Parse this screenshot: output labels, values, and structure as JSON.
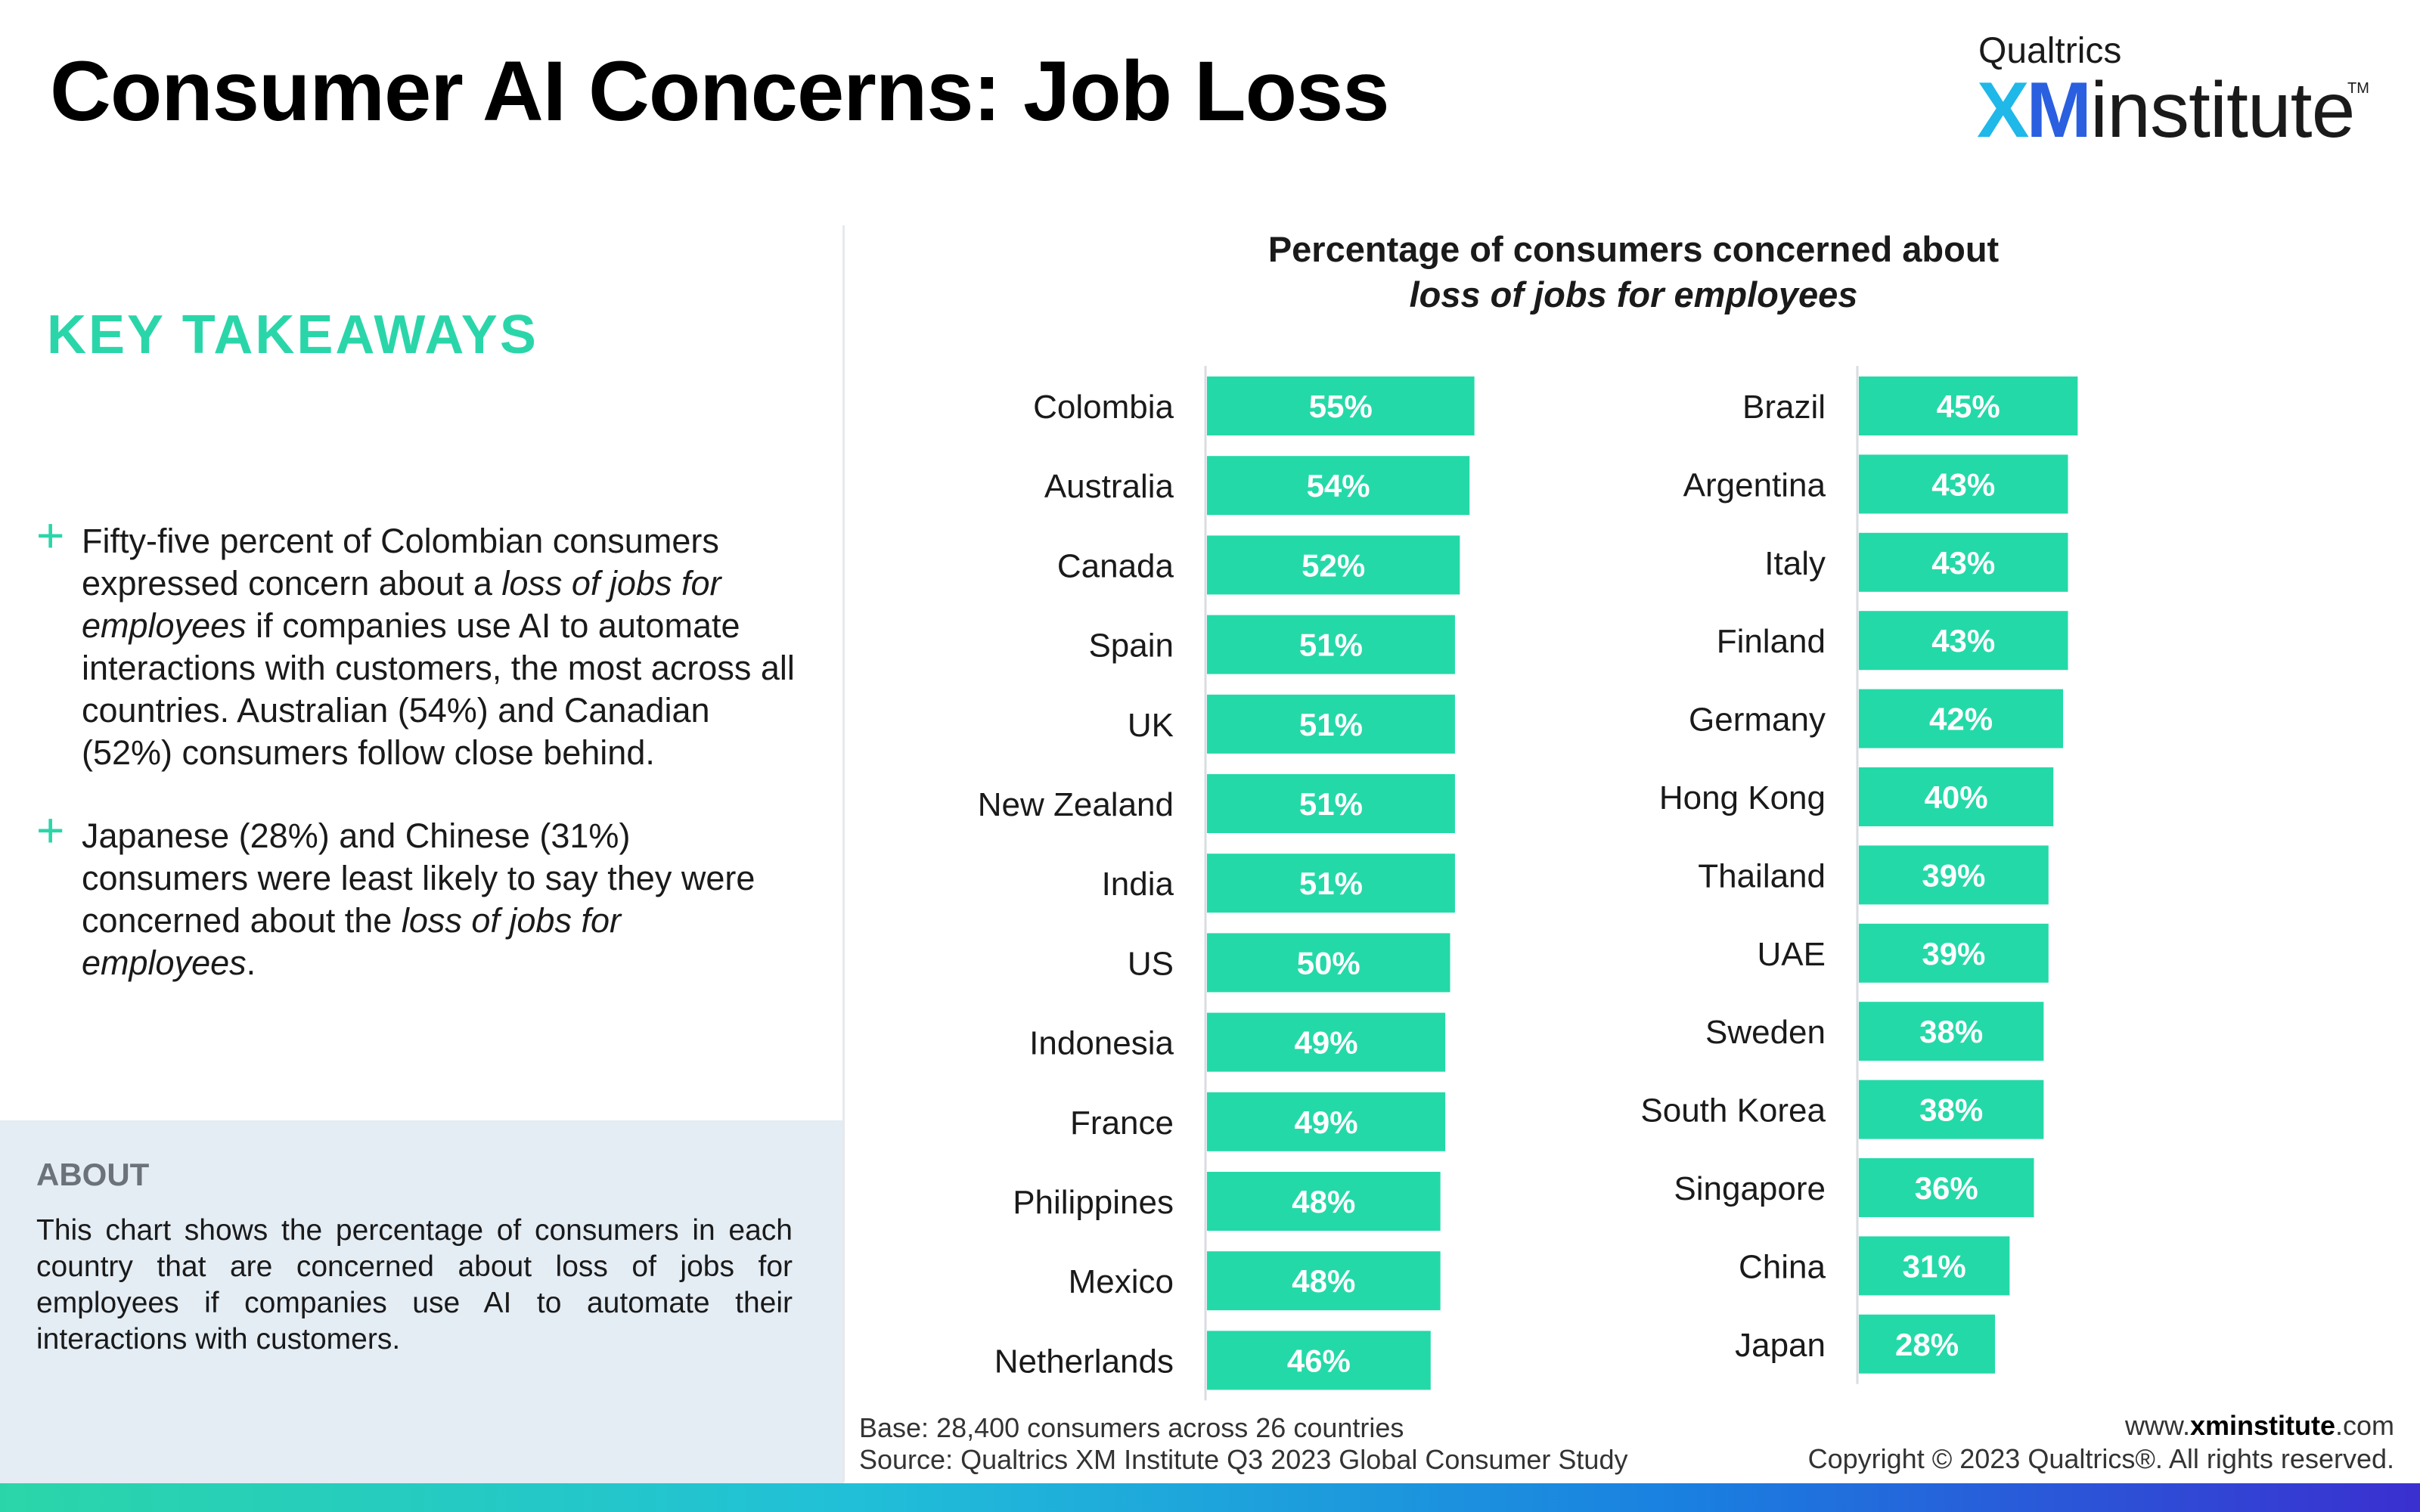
{
  "header": {
    "title": "Consumer AI Concerns: Job Loss",
    "logo_top": "Qualtrics",
    "logo_xm": "XM",
    "logo_institute": "institute",
    "logo_tm": "TM"
  },
  "takeaways": {
    "heading": "KEY TAKEAWAYS",
    "bullets": [
      {
        "p1": "Fifty-five percent of Colombian consumers expressed concern about a ",
        "em": "loss of jobs for employees",
        "p2": " if companies use AI to automate interactions with customers, the most across all countries. Australian (54%) and Canadian (52%) consumers follow close behind."
      },
      {
        "p1": "Japanese (28%) and Chinese (31%) consumers were least likely to say they were concerned about the ",
        "em": "loss of jobs for employees",
        "p2": "."
      }
    ]
  },
  "about": {
    "heading": "ABOUT",
    "text": "This chart shows the percentage of consumers in each country that are concerned about loss of jobs for employees if companies use AI to automate their interactions with customers."
  },
  "chart_data": {
    "type": "bar",
    "orientation": "horizontal",
    "title": "Percentage of consumers concerned about",
    "subtitle": "loss of jobs for employees",
    "value_suffix": "%",
    "bar_color": "#24d9a8",
    "panels": [
      {
        "categories": [
          "Colombia",
          "Australia",
          "Canada",
          "Spain",
          "UK",
          "New Zealand",
          "India",
          "US",
          "Indonesia",
          "France",
          "Philippines",
          "Mexico",
          "Netherlands"
        ],
        "values": [
          55,
          54,
          52,
          51,
          51,
          51,
          51,
          50,
          49,
          49,
          48,
          48,
          46
        ]
      },
      {
        "categories": [
          "Brazil",
          "Argentina",
          "Italy",
          "Finland",
          "Germany",
          "Hong Kong",
          "Thailand",
          "UAE",
          "Sweden",
          "South Korea",
          "Singapore",
          "China",
          "Japan"
        ],
        "values": [
          45,
          43,
          43,
          43,
          42,
          40,
          39,
          39,
          38,
          38,
          36,
          31,
          28
        ]
      }
    ]
  },
  "footer": {
    "base": "Base: 28,400 consumers across 26 countries",
    "source": "Source: Qualtrics XM Institute Q3 2023 Global Consumer Study",
    "url_pre": "www.",
    "url_bold": "xminstitute",
    "url_post": ".com",
    "copyright": "Copyright © 2023 Qualtrics®. All rights reserved."
  }
}
